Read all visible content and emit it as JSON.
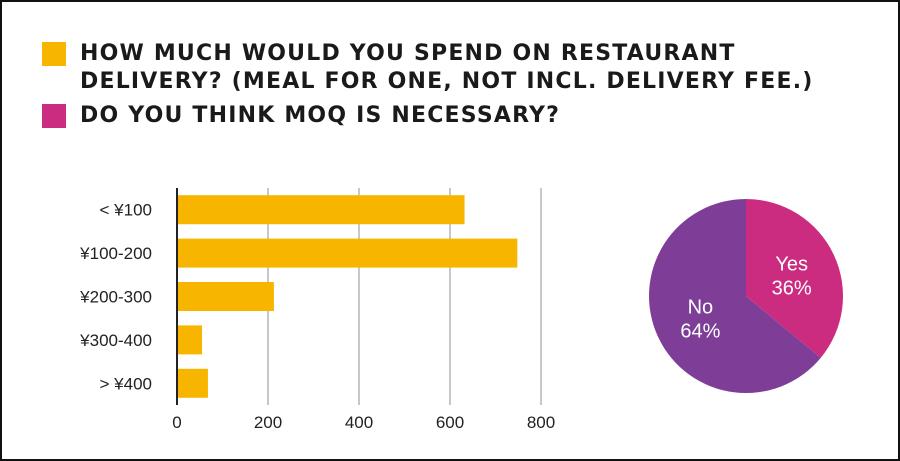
{
  "legend": [
    {
      "label": "HOW MUCH WOULD YOU SPEND ON RESTAURANT DELIVERY? (MEAL FOR ONE, NOT INCL. DELIVERY FEE.)",
      "color": "#f8b500"
    },
    {
      "label": "DO YOU THINK MOQ IS NECESSARY?",
      "color": "#cc2c80"
    }
  ],
  "chart_data": [
    {
      "type": "bar",
      "orientation": "horizontal",
      "categories": [
        "< ¥100",
        "¥100-200",
        "¥200-300",
        "¥300-400",
        "> ¥400"
      ],
      "values": [
        632,
        748,
        213,
        55,
        68
      ],
      "xlim": [
        0,
        800
      ],
      "xticks": [
        0,
        200,
        400,
        600,
        800
      ],
      "grid": true,
      "color": "#f8b500"
    },
    {
      "type": "pie",
      "slices": [
        {
          "label": "Yes",
          "value": 36,
          "value_label": "36%",
          "color": "#cc2c80"
        },
        {
          "label": "No",
          "value": 64,
          "value_label": "64%",
          "color": "#7e3e98"
        }
      ]
    }
  ]
}
